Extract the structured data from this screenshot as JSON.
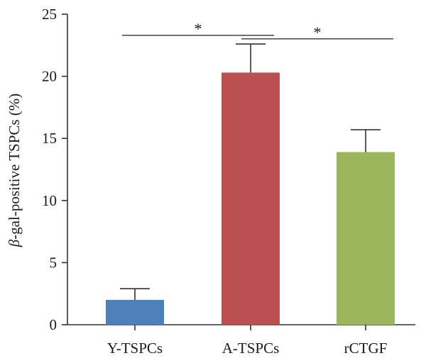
{
  "chart_data": {
    "type": "bar",
    "title": "",
    "xlabel": "",
    "ylabel": "β-gal-positive TSPCs (%)",
    "ylabel_symbol": "β",
    "ylabel_rest": "-gal-positive TSPCs (%)",
    "ylim": [
      0,
      25
    ],
    "yticks": [
      0,
      5,
      10,
      15,
      20,
      25
    ],
    "grid": false,
    "legend": "none",
    "categories": [
      "Y-TSPCs",
      "A-TSPCs",
      "rCTGF"
    ],
    "values": [
      2.0,
      20.3,
      13.9
    ],
    "errors": [
      0.9,
      2.3,
      1.8
    ],
    "colors": [
      "#4f7fbc",
      "#bc4f4f",
      "#9bb75e"
    ],
    "significance": [
      {
        "from": "Y-TSPCs",
        "to": "A-TSPCs",
        "label": "*",
        "level": 23.3
      },
      {
        "from": "A-TSPCs",
        "to": "rCTGF",
        "label": "*",
        "level": 23.3
      }
    ]
  }
}
